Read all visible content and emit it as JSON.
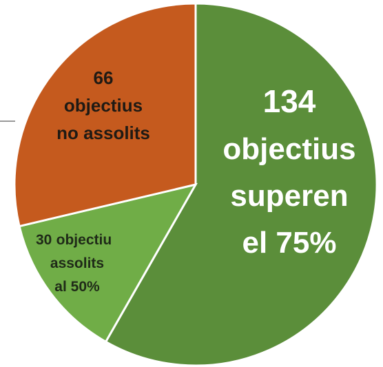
{
  "chart_data": {
    "type": "pie",
    "values": [
      134,
      30,
      66
    ],
    "labels": [
      [
        "objectius",
        "superen",
        "el 75%"
      ],
      [
        "objectiu",
        "assolits",
        "al 50%"
      ],
      [
        "objectius",
        "no assolits"
      ]
    ],
    "colors": [
      "#5b8e3a",
      "#70ad47",
      "#c55a1e"
    ],
    "label_colors": [
      "#ffffff",
      "#1f2a18",
      "#1f1a14"
    ],
    "start_angle": 0,
    "direction": "clockwise"
  }
}
